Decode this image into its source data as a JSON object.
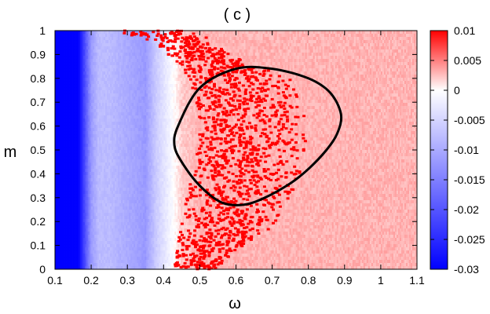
{
  "chart_data": {
    "type": "heatmap",
    "title": "( c )",
    "xlabel": "ω",
    "ylabel": "m",
    "xlim": [
      0.1,
      1.1
    ],
    "ylim": [
      0,
      1
    ],
    "x_ticks": [
      "0.1",
      "0.2",
      "0.3",
      "0.4",
      "0.5",
      "0.6",
      "0.7",
      "0.8",
      "0.9",
      "1",
      "1.1"
    ],
    "y_ticks": [
      "0",
      "0.1",
      "0.2",
      "0.3",
      "0.4",
      "0.5",
      "0.6",
      "0.7",
      "0.8",
      "0.9",
      "1"
    ],
    "colorbar": {
      "range": [
        -0.03,
        0.01
      ],
      "ticks": [
        "0.01",
        "0.005",
        "0",
        "-0.005",
        "-0.01",
        "-0.015",
        "-0.02",
        "-0.025",
        "-0.03"
      ],
      "colors": {
        "low": "#0000ff",
        "mid": "#ffffff",
        "high": "#ff0000"
      }
    },
    "field_profile_vs_omega": {
      "omega": [
        0.1,
        0.165,
        0.175,
        0.2,
        0.22,
        0.25,
        0.3,
        0.35,
        0.38,
        0.42,
        0.45,
        0.5,
        1.1
      ],
      "value": [
        -0.03,
        -0.03,
        -0.025,
        -0.012,
        -0.008,
        -0.008,
        -0.01,
        -0.012,
        -0.006,
        -0.001,
        0.002,
        0.003,
        0.003
      ]
    },
    "scatter_region": {
      "description": "positive values",
      "value": 0.01,
      "color": "#ff0000",
      "omega_range_by_m": [
        {
          "m": 0.0,
          "omega": [
            0.43,
            0.53
          ]
        },
        {
          "m": 0.2,
          "omega": [
            0.45,
            0.72
          ]
        },
        {
          "m": 0.4,
          "omega": [
            0.48,
            0.78
          ]
        },
        {
          "m": 0.6,
          "omega": [
            0.5,
            0.8
          ]
        },
        {
          "m": 0.8,
          "omega": [
            0.47,
            0.75
          ]
        },
        {
          "m": 0.95,
          "omega": [
            0.38,
            0.5
          ]
        },
        {
          "m": 1.0,
          "omega": [
            0.26,
            0.45
          ]
        }
      ],
      "density_peak_omega": 0.58
    },
    "contour": {
      "color": "#000000",
      "points": [
        [
          0.44,
          0.6
        ],
        [
          0.5,
          0.76
        ],
        [
          0.6,
          0.84
        ],
        [
          0.7,
          0.84
        ],
        [
          0.8,
          0.8
        ],
        [
          0.86,
          0.74
        ],
        [
          0.89,
          0.65
        ],
        [
          0.88,
          0.57
        ],
        [
          0.85,
          0.5
        ],
        [
          0.8,
          0.42
        ],
        [
          0.75,
          0.36
        ],
        [
          0.68,
          0.3
        ],
        [
          0.62,
          0.27
        ],
        [
          0.56,
          0.28
        ],
        [
          0.5,
          0.35
        ],
        [
          0.45,
          0.45
        ],
        [
          0.43,
          0.52
        ]
      ]
    }
  }
}
